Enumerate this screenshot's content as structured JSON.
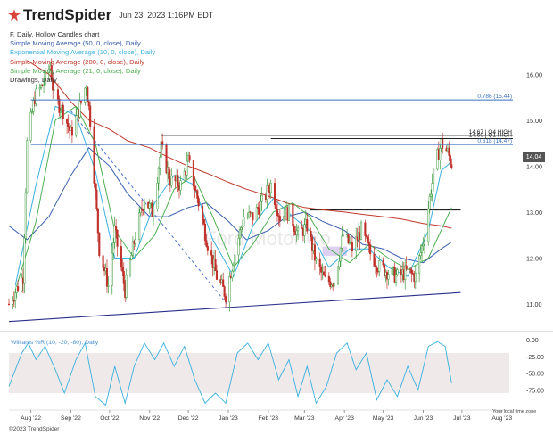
{
  "header": {
    "brand": "TrendSpider",
    "timestamp": "Jun 23, 2023 1:16PM EDT"
  },
  "legend": [
    {
      "text": "F, Daily, Hollow Candles chart",
      "color": "#333333"
    },
    {
      "text": "Simple Moving Average (50, 0, close), Daily",
      "color": "#3a5fb0"
    },
    {
      "text": "Exponential Moving Average (10, 0, close), Daily",
      "color": "#39b0e0"
    },
    {
      "text": "Simple Moving Average (200, 0, close), Daily",
      "color": "#c0392b"
    },
    {
      "text": "Simple Moving Average (21, 0, close), Daily",
      "color": "#4caf50"
    },
    {
      "text": "Drawings, Daily",
      "color": "#333333"
    }
  ],
  "footer": {
    "copyright": "©2023 TrendSpider",
    "timezone": "Your local time zone"
  },
  "last_price_label": "14.04",
  "chart_data": {
    "type": "candlestick",
    "symbol": "F",
    "timeframe": "Daily",
    "x_ticks": [
      "Aug '22",
      "Sep '22",
      "Oct '22",
      "Nov '22",
      "Dec '22",
      "Jan '23",
      "Feb '23",
      "Mar '23",
      "Apr '23",
      "May '23",
      "Jun '23",
      "Jul '23",
      "Aug '23"
    ],
    "x_range": [
      "2022-07-15",
      "2023-08-15"
    ],
    "price_axis": {
      "ticks": [
        "11.00",
        "12.00",
        "13.00",
        "14.00",
        "15.00",
        "16.00"
      ],
      "ylim": [
        10.4,
        16.8
      ]
    },
    "last_price": 14.04,
    "price_path": [
      [
        "2022-07-15",
        11.0
      ],
      [
        "2022-07-26",
        11.6
      ],
      [
        "2022-07-29",
        14.5
      ],
      [
        "2022-08-04",
        15.5
      ],
      [
        "2022-08-11",
        15.8
      ],
      [
        "2022-08-16",
        16.2
      ],
      [
        "2022-08-19",
        15.5
      ],
      [
        "2022-08-26",
        15.2
      ],
      [
        "2022-09-01",
        14.7
      ],
      [
        "2022-09-08",
        15.3
      ],
      [
        "2022-09-13",
        15.8
      ],
      [
        "2022-09-16",
        15.0
      ],
      [
        "2022-09-23",
        12.2
      ],
      [
        "2022-09-30",
        11.4
      ],
      [
        "2022-10-05",
        12.6
      ],
      [
        "2022-10-13",
        11.3
      ],
      [
        "2022-10-21",
        12.5
      ],
      [
        "2022-10-28",
        13.3
      ],
      [
        "2022-11-03",
        13.0
      ],
      [
        "2022-11-10",
        14.4
      ],
      [
        "2022-11-17",
        13.7
      ],
      [
        "2022-11-25",
        13.6
      ],
      [
        "2022-12-01",
        14.1
      ],
      [
        "2022-12-09",
        13.2
      ],
      [
        "2022-12-16",
        12.3
      ],
      [
        "2022-12-23",
        11.6
      ],
      [
        "2022-12-30",
        11.2
      ],
      [
        "2023-01-06",
        12.1
      ],
      [
        "2023-01-13",
        12.9
      ],
      [
        "2023-01-20",
        12.9
      ],
      [
        "2023-01-27",
        13.2
      ],
      [
        "2023-02-03",
        13.6
      ],
      [
        "2023-02-10",
        12.9
      ],
      [
        "2023-02-17",
        13.0
      ],
      [
        "2023-02-24",
        12.5
      ],
      [
        "2023-03-03",
        12.7
      ],
      [
        "2023-03-10",
        11.9
      ],
      [
        "2023-03-17",
        11.5
      ],
      [
        "2023-03-24",
        11.5
      ],
      [
        "2023-03-31",
        12.5
      ],
      [
        "2023-04-07",
        12.2
      ],
      [
        "2023-04-14",
        12.6
      ],
      [
        "2023-04-21",
        12.1
      ],
      [
        "2023-04-28",
        11.8
      ],
      [
        "2023-05-05",
        11.7
      ],
      [
        "2023-05-12",
        11.6
      ],
      [
        "2023-05-19",
        11.7
      ],
      [
        "2023-05-26",
        11.6
      ],
      [
        "2023-06-02",
        12.5
      ],
      [
        "2023-06-07",
        13.5
      ],
      [
        "2023-06-12",
        14.2
      ],
      [
        "2023-06-15",
        14.5
      ],
      [
        "2023-06-20",
        14.3
      ],
      [
        "2023-06-23",
        14.04
      ]
    ],
    "moving_averages": [
      {
        "name": "SMA 50",
        "color": "#3a5fb0",
        "path": [
          [
            "2022-07-15",
            12.7
          ],
          [
            "2022-07-29",
            12.4
          ],
          [
            "2022-08-15",
            12.9
          ],
          [
            "2022-09-01",
            13.8
          ],
          [
            "2022-09-15",
            14.4
          ],
          [
            "2022-10-01",
            14.0
          ],
          [
            "2022-10-15",
            13.4
          ],
          [
            "2022-11-01",
            12.9
          ],
          [
            "2022-11-15",
            12.9
          ],
          [
            "2022-12-01",
            13.1
          ],
          [
            "2022-12-15",
            13.2
          ],
          [
            "2023-01-01",
            12.8
          ],
          [
            "2023-01-15",
            12.4
          ],
          [
            "2023-02-01",
            12.6
          ],
          [
            "2023-02-15",
            12.9
          ],
          [
            "2023-03-01",
            13.0
          ],
          [
            "2023-03-15",
            12.8
          ],
          [
            "2023-04-01",
            12.6
          ],
          [
            "2023-04-15",
            12.3
          ],
          [
            "2023-05-01",
            12.2
          ],
          [
            "2023-05-15",
            12.0
          ],
          [
            "2023-06-01",
            11.9
          ],
          [
            "2023-06-15",
            12.2
          ],
          [
            "2023-06-23",
            12.35
          ]
        ]
      },
      {
        "name": "SMA 200",
        "color": "#c0392b",
        "path": [
          [
            "2022-07-29",
            16.3
          ],
          [
            "2022-08-15",
            16.0
          ],
          [
            "2022-09-01",
            15.4
          ],
          [
            "2022-09-15",
            15.0
          ],
          [
            "2022-10-01",
            14.8
          ],
          [
            "2022-10-15",
            14.55
          ],
          [
            "2022-11-01",
            14.4
          ],
          [
            "2022-11-15",
            14.2
          ],
          [
            "2022-12-01",
            14.0
          ],
          [
            "2022-12-15",
            13.85
          ],
          [
            "2023-01-01",
            13.65
          ],
          [
            "2023-01-15",
            13.5
          ],
          [
            "2023-02-01",
            13.35
          ],
          [
            "2023-02-15",
            13.2
          ],
          [
            "2023-03-01",
            13.1
          ],
          [
            "2023-03-15",
            13.05
          ],
          [
            "2023-04-01",
            13.0
          ],
          [
            "2023-04-15",
            12.95
          ],
          [
            "2023-05-01",
            12.9
          ],
          [
            "2023-05-15",
            12.85
          ],
          [
            "2023-06-01",
            12.75
          ],
          [
            "2023-06-15",
            12.7
          ],
          [
            "2023-06-23",
            12.65
          ]
        ]
      },
      {
        "name": "SMA 21",
        "color": "#4caf50",
        "path": [
          [
            "2022-07-20",
            11.3
          ],
          [
            "2022-08-05",
            12.8
          ],
          [
            "2022-08-20",
            15.0
          ],
          [
            "2022-09-05",
            15.3
          ],
          [
            "2022-09-20",
            14.5
          ],
          [
            "2022-10-05",
            12.6
          ],
          [
            "2022-10-20",
            12.0
          ],
          [
            "2022-11-05",
            12.5
          ],
          [
            "2022-11-20",
            13.5
          ],
          [
            "2022-12-05",
            13.8
          ],
          [
            "2022-12-20",
            12.9
          ],
          [
            "2023-01-05",
            11.8
          ],
          [
            "2023-01-20",
            12.3
          ],
          [
            "2023-02-05",
            13.0
          ],
          [
            "2023-02-20",
            13.2
          ],
          [
            "2023-03-05",
            12.9
          ],
          [
            "2023-03-20",
            12.2
          ],
          [
            "2023-04-05",
            11.9
          ],
          [
            "2023-04-20",
            12.3
          ],
          [
            "2023-05-05",
            12.0
          ],
          [
            "2023-05-20",
            11.75
          ],
          [
            "2023-06-05",
            12.0
          ],
          [
            "2023-06-23",
            13.1
          ]
        ]
      },
      {
        "name": "EMA 10",
        "color": "#39b0e0",
        "path": [
          [
            "2022-07-20",
            11.4
          ],
          [
            "2022-08-05",
            13.6
          ],
          [
            "2022-08-20",
            15.3
          ],
          [
            "2022-09-05",
            15.1
          ],
          [
            "2022-09-20",
            13.9
          ],
          [
            "2022-10-05",
            12.0
          ],
          [
            "2022-10-20",
            12.0
          ],
          [
            "2022-11-05",
            13.2
          ],
          [
            "2022-11-20",
            13.8
          ],
          [
            "2022-12-05",
            13.6
          ],
          [
            "2022-12-20",
            12.4
          ],
          [
            "2023-01-05",
            11.6
          ],
          [
            "2023-01-20",
            12.7
          ],
          [
            "2023-02-05",
            13.3
          ],
          [
            "2023-02-20",
            12.9
          ],
          [
            "2023-03-05",
            12.6
          ],
          [
            "2023-03-20",
            11.8
          ],
          [
            "2023-04-05",
            12.2
          ],
          [
            "2023-04-20",
            12.2
          ],
          [
            "2023-05-05",
            11.8
          ],
          [
            "2023-05-20",
            11.6
          ],
          [
            "2023-06-05",
            12.6
          ],
          [
            "2023-06-15",
            13.9
          ],
          [
            "2023-06-23",
            14.1
          ]
        ]
      }
    ],
    "drawings": {
      "levels": [
        {
          "label": "0.786 (15.44)",
          "value": 15.44,
          "color": "#3a6fc0"
        },
        {
          "label": "14.67 | Q4 HIGH",
          "value": 14.67,
          "color": "#222222"
        },
        {
          "label": "14.60 | Q1 HIGH",
          "value": 14.6,
          "color": "#222222"
        },
        {
          "label": "0.618 (14.47)",
          "value": 14.47,
          "color": "#3a6fc0"
        }
      ],
      "resistance_value": 13.05,
      "uptrend_line": [
        [
          "2022-07-15",
          10.62
        ],
        [
          "2023-06-30",
          11.25
        ]
      ],
      "downtrend_line": [
        [
          "2022-09-01",
          15.2
        ],
        [
          "2022-12-31",
          11.0
        ]
      ]
    },
    "williams_r": {
      "label": "Williams %R (10, -20, -80), Daily",
      "ticks": [
        "0.00",
        "-25.00",
        "-50.00",
        "-75.00"
      ],
      "ylim": [
        -100,
        0
      ],
      "band": [
        -80,
        -20
      ],
      "color": "#39b0e0",
      "path": [
        [
          "2022-07-15",
          -70
        ],
        [
          "2022-07-25",
          -20
        ],
        [
          "2022-07-30",
          -5
        ],
        [
          "2022-08-05",
          -30
        ],
        [
          "2022-08-12",
          -10
        ],
        [
          "2022-08-20",
          -45
        ],
        [
          "2022-08-27",
          -80
        ],
        [
          "2022-09-05",
          -30
        ],
        [
          "2022-09-12",
          -5
        ],
        [
          "2022-09-20",
          -85
        ],
        [
          "2022-09-28",
          -98
        ],
        [
          "2022-10-05",
          -40
        ],
        [
          "2022-10-13",
          -95
        ],
        [
          "2022-10-20",
          -40
        ],
        [
          "2022-10-28",
          -5
        ],
        [
          "2022-11-05",
          -30
        ],
        [
          "2022-11-12",
          -5
        ],
        [
          "2022-11-20",
          -40
        ],
        [
          "2022-11-28",
          -10
        ],
        [
          "2022-12-06",
          -60
        ],
        [
          "2022-12-14",
          -95
        ],
        [
          "2022-12-22",
          -80
        ],
        [
          "2022-12-30",
          -95
        ],
        [
          "2023-01-08",
          -20
        ],
        [
          "2023-01-16",
          -5
        ],
        [
          "2023-01-24",
          -30
        ],
        [
          "2023-02-01",
          -5
        ],
        [
          "2023-02-09",
          -60
        ],
        [
          "2023-02-17",
          -30
        ],
        [
          "2023-02-24",
          -85
        ],
        [
          "2023-03-03",
          -40
        ],
        [
          "2023-03-10",
          -95
        ],
        [
          "2023-03-18",
          -70
        ],
        [
          "2023-03-26",
          -20
        ],
        [
          "2023-04-03",
          -5
        ],
        [
          "2023-04-10",
          -45
        ],
        [
          "2023-04-18",
          -20
        ],
        [
          "2023-04-26",
          -90
        ],
        [
          "2023-05-04",
          -60
        ],
        [
          "2023-05-12",
          -85
        ],
        [
          "2023-05-20",
          -40
        ],
        [
          "2023-05-28",
          -75
        ],
        [
          "2023-06-05",
          -10
        ],
        [
          "2023-06-12",
          -3
        ],
        [
          "2023-06-18",
          -10
        ],
        [
          "2023-06-23",
          -65
        ]
      ]
    },
    "watermark": "Ford Motor Co"
  }
}
